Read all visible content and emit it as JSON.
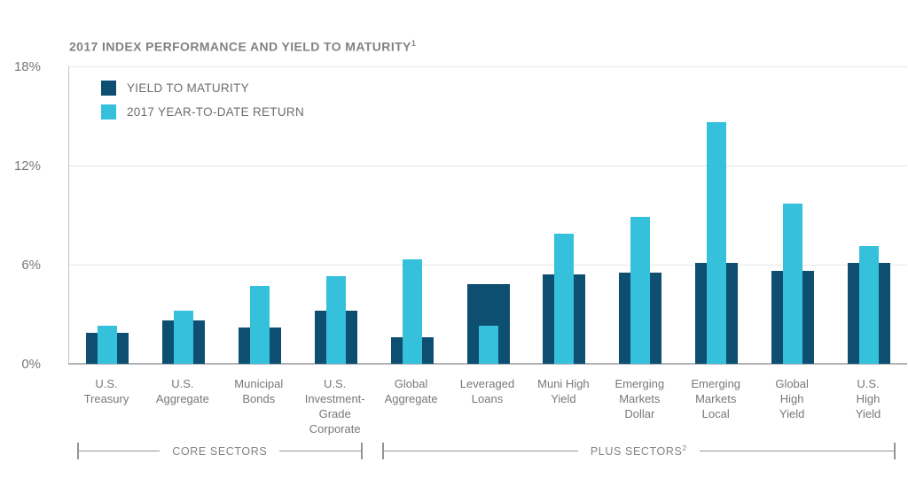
{
  "title": "2017 INDEX PERFORMANCE AND YIELD TO MATURITY",
  "title_superscript": "1",
  "colors": {
    "yield_bar": "#0d4e71",
    "return_bar": "#35c1dc",
    "title_text": "#808285",
    "axis_text": "#77787b",
    "gridline": "#e6e7e8",
    "baseline": "#b1b3b6",
    "bracket": "#939598"
  },
  "chart_data": {
    "type": "bar",
    "title": "2017 INDEX PERFORMANCE AND YIELD TO MATURITY",
    "title_superscript": "1",
    "xlabel": "",
    "ylabel": "",
    "ylim": [
      0,
      18
    ],
    "yticks": [
      0,
      6,
      12,
      18
    ],
    "ytick_labels": [
      "0%",
      "6%",
      "12%",
      "18%"
    ],
    "grid": "horizontal",
    "legend_position": "top-left-inside",
    "categories": [
      "U.S. Treasury",
      "U.S. Aggregate",
      "Municipal Bonds",
      "U.S. Investment-Grade Corporate",
      "Global Aggregate",
      "Leveraged Loans",
      "Muni High Yield",
      "Emerging Markets Dollar",
      "Emerging Markets Local",
      "Global High Yield",
      "U.S. High Yield"
    ],
    "category_lines": [
      [
        "U.S.",
        "Treasury"
      ],
      [
        "U.S.",
        "Aggregate"
      ],
      [
        "Municipal",
        "Bonds"
      ],
      [
        "U.S.",
        "Investment-",
        "Grade",
        "Corporate"
      ],
      [
        "Global",
        "Aggregate"
      ],
      [
        "Leveraged",
        "Loans"
      ],
      [
        "Muni High",
        "Yield"
      ],
      [
        "Emerging",
        "Markets",
        "Dollar"
      ],
      [
        "Emerging",
        "Markets",
        "Local"
      ],
      [
        "Global",
        "High",
        "Yield"
      ],
      [
        "U.S.",
        "High",
        "Yield"
      ]
    ],
    "series": [
      {
        "name": "YIELD TO MATURITY",
        "color": "#0d4e71",
        "values": [
          1.9,
          2.6,
          2.2,
          3.2,
          1.6,
          4.8,
          5.4,
          5.5,
          6.1,
          5.6,
          6.1
        ]
      },
      {
        "name": "2017 YEAR-TO-DATE RETURN",
        "color": "#35c1dc",
        "values": [
          2.3,
          3.2,
          4.7,
          5.3,
          6.3,
          2.3,
          7.9,
          8.9,
          14.6,
          9.7,
          7.1
        ]
      }
    ],
    "sector_groups": [
      {
        "label": "CORE SECTORS",
        "superscript": "",
        "from": 0,
        "to": 3
      },
      {
        "label": "PLUS SECTORS",
        "superscript": "2",
        "from": 4,
        "to": 10
      }
    ]
  }
}
